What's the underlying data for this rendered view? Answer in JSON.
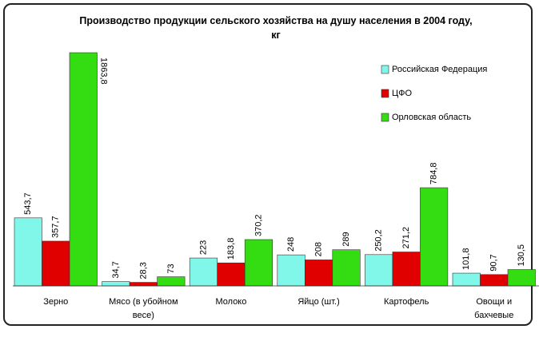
{
  "chart_data": {
    "type": "bar",
    "title": "Производство продукции сельского хозяйства на душу населения в 2004 году, кг",
    "categories": [
      "Зерно",
      "Мясо (в убойном весе)",
      "Молоко",
      "Яйцо (шт.)",
      "Картофель",
      "Овощи и бахчевые"
    ],
    "series": [
      {
        "name": "Российская Федерация",
        "color": "#80f7e8",
        "values": [
          543.7,
          34.7,
          223,
          248,
          250.2,
          101.8
        ],
        "value_labels": [
          "543,7",
          "34,7",
          "223",
          "248",
          "250,2",
          "101,8"
        ]
      },
      {
        "name": "ЦФО",
        "color": "#e00000",
        "values": [
          357.7,
          28.3,
          183.8,
          208,
          271.2,
          90.7
        ],
        "value_labels": [
          "357,7",
          "28,3",
          "183,8",
          "208",
          "271,2",
          "90,7"
        ]
      },
      {
        "name": "Орловская область",
        "color": "#33dd11",
        "values": [
          1863.8,
          73,
          370.2,
          289,
          784.8,
          130.5
        ],
        "value_labels": [
          "1863,8",
          "73",
          "370,2",
          "289",
          "784,8",
          "130,5"
        ]
      }
    ],
    "legend": "upper right"
  }
}
